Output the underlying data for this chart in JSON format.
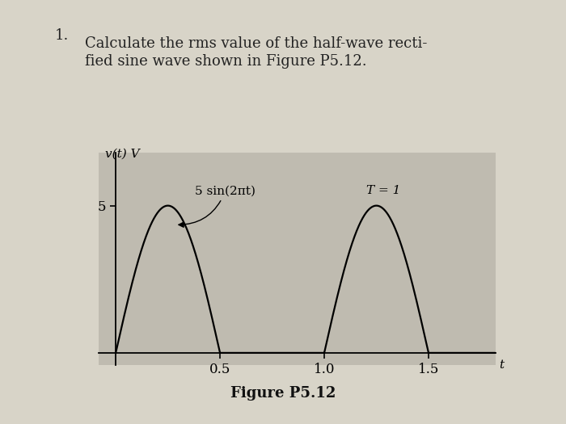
{
  "title_line1": "Calculate the rms value of the half-wave recti-",
  "title_line2": "fied sine wave shown in Figure P5.12.",
  "problem_number": "1.",
  "figure_caption": "Figure P5.12",
  "ylabel": "v(t) V",
  "xlabel": "t",
  "ytick_labels": [
    "5"
  ],
  "ytick_values": [
    5
  ],
  "xtick_labels": [
    "0.5",
    "1.0",
    "1.5"
  ],
  "xtick_values": [
    0.5,
    1.0,
    1.5
  ],
  "amplitude": 5,
  "period": 1.0,
  "annotation_text": "5 sin(2πt)",
  "annotation_T": "T = 1",
  "xlim": [
    -0.08,
    1.82
  ],
  "ylim": [
    -0.4,
    6.8
  ],
  "line_color": "#000000",
  "page_bg": "#d8d4c8",
  "graph_bg": "#bfbbb0"
}
